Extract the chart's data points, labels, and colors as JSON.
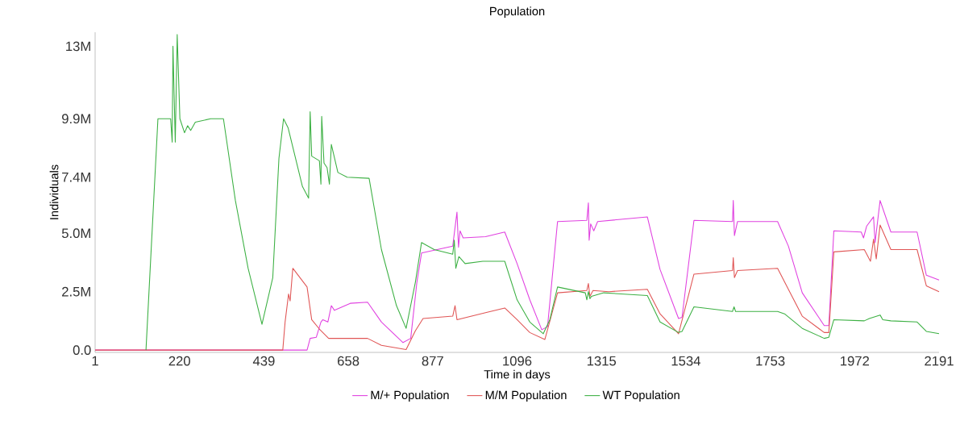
{
  "chart_data": {
    "type": "line",
    "title": "Population",
    "xlabel": "Time in days",
    "ylabel": "Individuals",
    "xlim": [
      1,
      2191
    ],
    "xticks": [
      1,
      220,
      439,
      658,
      877,
      1096,
      1315,
      1534,
      1753,
      1972,
      2191
    ],
    "ylim": [
      -0.1,
      13.6
    ],
    "yticks": [
      {
        "value": 0,
        "label": "0.0"
      },
      {
        "value": 2.5,
        "label": "2.5M"
      },
      {
        "value": 5.0,
        "label": "5.0M"
      },
      {
        "value": 7.4,
        "label": "7.4M"
      },
      {
        "value": 9.9,
        "label": "9.9M"
      },
      {
        "value": 13,
        "label": "13M"
      }
    ],
    "legend": "bottom",
    "series": [
      {
        "name": "M/+ Population",
        "color": "#e040e0",
        "x": [
          1,
          551,
          559,
          575,
          587,
          592,
          605,
          614,
          622,
          663,
          708,
          744,
          800,
          820,
          836,
          848,
          929,
          940,
          944,
          948,
          956,
          1014,
          1064,
          1096,
          1129,
          1160,
          1175,
          1201,
          1277,
          1281,
          1283,
          1287,
          1295,
          1305,
          1434,
          1467,
          1515,
          1524,
          1555,
          1655,
          1657,
          1660,
          1668,
          1772,
          1800,
          1836,
          1893,
          1905,
          1918,
          1989,
          1995,
          2003,
          2021,
          2025,
          2038,
          2066,
          2134,
          2158,
          2191
        ],
        "values": [
          0,
          0,
          0.5,
          0.55,
          1.2,
          1.3,
          1.2,
          1.9,
          1.7,
          2.0,
          2.05,
          1.2,
          0.32,
          0.5,
          2.9,
          4.15,
          4.45,
          5.9,
          4.4,
          5.1,
          4.8,
          4.85,
          5.05,
          3.7,
          2.15,
          0.87,
          1.0,
          5.5,
          5.55,
          6.3,
          4.7,
          5.4,
          5.1,
          5.5,
          5.7,
          3.45,
          1.35,
          1.4,
          5.55,
          5.5,
          6.4,
          4.9,
          5.5,
          5.5,
          4.45,
          2.45,
          1.05,
          1.05,
          5.1,
          5.05,
          4.8,
          5.3,
          5.7,
          4.6,
          6.4,
          5.05,
          5.05,
          3.2,
          3.0
        ]
      },
      {
        "name": "M/M Population",
        "color": "#e05555",
        "x": [
          1,
          488,
          494,
          503,
          507,
          514,
          551,
          563,
          583,
          607,
          708,
          744,
          808,
          832,
          852,
          929,
          935,
          940,
          1014,
          1064,
          1096,
          1129,
          1168,
          1201,
          1277,
          1281,
          1285,
          1293,
          1334,
          1434,
          1467,
          1515,
          1555,
          1655,
          1657,
          1660,
          1668,
          1772,
          1800,
          1836,
          1893,
          1905,
          1918,
          1997,
          2013,
          2021,
          2028,
          2038,
          2066,
          2134,
          2158,
          2191
        ],
        "values": [
          0,
          0,
          1.2,
          2.4,
          2.1,
          3.5,
          2.7,
          1.3,
          0.9,
          0.5,
          0.5,
          0.2,
          0.02,
          0.82,
          1.35,
          1.45,
          1.9,
          1.3,
          1.6,
          1.8,
          1.3,
          0.75,
          0.45,
          2.45,
          2.55,
          2.85,
          2.3,
          2.55,
          2.5,
          2.6,
          1.55,
          0.7,
          3.25,
          3.4,
          3.95,
          3.1,
          3.4,
          3.5,
          2.6,
          1.45,
          0.75,
          0.75,
          4.2,
          4.3,
          3.8,
          4.75,
          3.9,
          5.35,
          4.3,
          4.3,
          2.75,
          2.5
        ]
      },
      {
        "name": "WT Population",
        "color": "#3cb043",
        "x": [
          133,
          164,
          197,
          201,
          203,
          209,
          214,
          221,
          233,
          241,
          249,
          261,
          301,
          334,
          365,
          398,
          434,
          462,
          478,
          490,
          502,
          539,
          555,
          559,
          563,
          583,
          587,
          589,
          595,
          603,
          609,
          614,
          631,
          655,
          712,
          744,
          783,
          808,
          832,
          848,
          881,
          929,
          933,
          937,
          945,
          961,
          1007,
          1064,
          1096,
          1129,
          1164,
          1181,
          1201,
          1273,
          1277,
          1281,
          1285,
          1289,
          1321,
          1434,
          1467,
          1515,
          1524,
          1555,
          1655,
          1659,
          1663,
          1772,
          1790,
          1836,
          1893,
          1905,
          1918,
          1997,
          2010,
          2038,
          2045,
          2066,
          2134,
          2158,
          2191
        ],
        "values": [
          0,
          9.9,
          9.9,
          8.9,
          13.0,
          8.9,
          13.5,
          9.9,
          9.3,
          9.6,
          9.4,
          9.75,
          9.9,
          9.9,
          6.4,
          3.5,
          1.1,
          3.1,
          8.2,
          9.9,
          9.5,
          7.0,
          6.5,
          10.2,
          8.3,
          8.1,
          7.1,
          10.0,
          8.0,
          7.8,
          7.1,
          8.8,
          7.6,
          7.4,
          7.35,
          4.3,
          1.9,
          0.93,
          2.9,
          4.6,
          4.3,
          4.1,
          4.7,
          3.5,
          4.0,
          3.7,
          3.8,
          3.8,
          2.15,
          1.2,
          0.7,
          1.3,
          2.7,
          2.45,
          2.15,
          2.5,
          2.2,
          2.3,
          2.45,
          2.33,
          1.2,
          0.75,
          0.8,
          1.85,
          1.65,
          1.85,
          1.65,
          1.65,
          1.55,
          0.93,
          0.5,
          0.55,
          1.3,
          1.25,
          1.35,
          1.5,
          1.3,
          1.25,
          1.2,
          0.8,
          0.7
        ]
      }
    ]
  }
}
